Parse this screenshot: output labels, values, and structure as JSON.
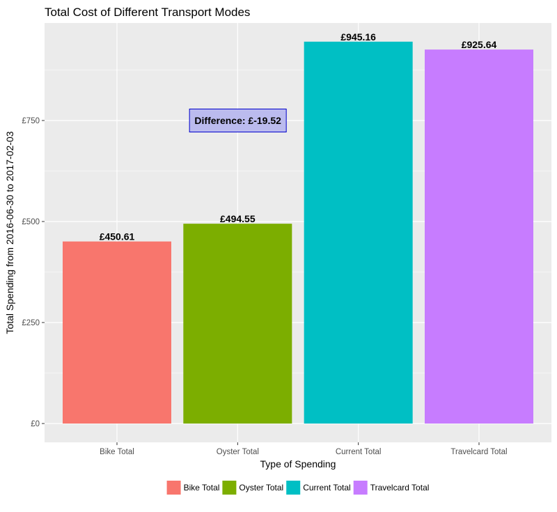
{
  "chart_data": {
    "type": "bar",
    "title": "Total Cost of Different Transport Modes",
    "xlabel": "Type of Spending",
    "ylabel": "Total Spending from 2016-06-30 to 2017-02-03",
    "categories": [
      "Bike Total",
      "Oyster Total",
      "Current Total",
      "Travelcard Total"
    ],
    "values": [
      450.61,
      494.55,
      945.16,
      925.64
    ],
    "value_labels": [
      "£450.61",
      "£494.55",
      "£945.16",
      "£925.64"
    ],
    "colors": [
      "#F8766D",
      "#7CAE00",
      "#00BFC4",
      "#C77CFF"
    ],
    "ylim": [
      0,
      993
    ],
    "yticks": [
      0,
      250,
      500,
      750
    ],
    "ytick_labels": [
      "£0",
      "£250",
      "£500",
      "£750"
    ],
    "grid": true,
    "legend_position": "bottom",
    "legend": [
      "Bike Total",
      "Oyster Total",
      "Current Total",
      "Travelcard Total"
    ],
    "annotation": {
      "text": "Difference: £-19.52",
      "x_category": "Oyster Total",
      "y": 750
    }
  }
}
